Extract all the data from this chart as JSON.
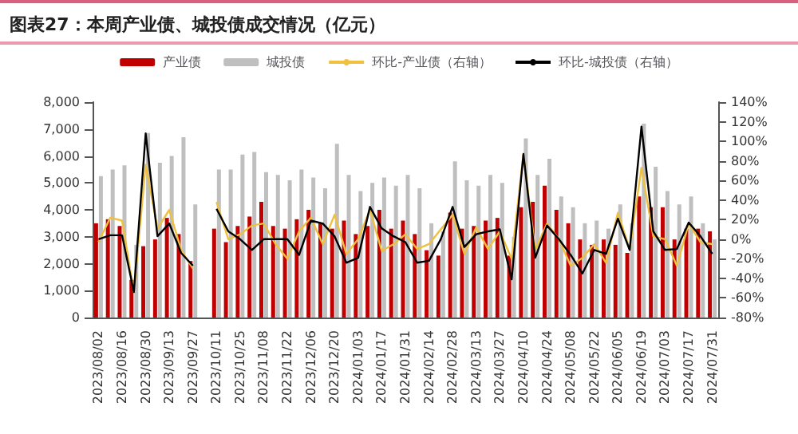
{
  "chart_data": {
    "type": "bar",
    "title": "图表27：本周产业债、城投债成交情况（亿元）",
    "categories": [
      "2023/08/02",
      null,
      "2023/08/16",
      null,
      "2023/08/30",
      null,
      "2023/09/13",
      null,
      "2023/09/27",
      null,
      "2023/10/11",
      null,
      "2023/10/25",
      null,
      "2023/11/08",
      null,
      "2023/11/22",
      null,
      "2023/12/06",
      null,
      "2023/12/20",
      null,
      "2024/01/03",
      null,
      "2024/01/17",
      null,
      "2024/01/31",
      null,
      "2024/02/14",
      null,
      "2024/02/28",
      null,
      "2024/03/13",
      null,
      "2024/03/27",
      null,
      "2024/04/10",
      null,
      "2024/04/24",
      null,
      "2024/05/08",
      null,
      "2024/05/22",
      null,
      "2024/06/05",
      null,
      "2024/06/19",
      null,
      "2024/07/03",
      null,
      "2024/07/17",
      null,
      "2024/07/31"
    ],
    "series": [
      {
        "name": "产业债",
        "color": "#c00000",
        "values": [
          3500,
          3650,
          3400,
          1400,
          2650,
          2900,
          3700,
          3100,
          2100,
          null,
          3300,
          2800,
          3400,
          3750,
          4300,
          3400,
          3300,
          3650,
          4000,
          3500,
          3300,
          3600,
          3100,
          3400,
          4000,
          3300,
          3600,
          3100,
          2500,
          2300,
          3900,
          3300,
          3400,
          3600,
          3700,
          2300,
          4100,
          4300,
          4900,
          4000,
          3500,
          2900,
          2700,
          2900,
          2700,
          2400,
          4500,
          4100,
          4100,
          2900,
          3300,
          3300,
          3200
        ]
      },
      {
        "name": "城投债",
        "color": "#bfbfbf",
        "values": [
          5250,
          5500,
          5650,
          2700,
          6850,
          5750,
          6000,
          6700,
          4200,
          null,
          5500,
          5500,
          6050,
          6150,
          5400,
          5300,
          5100,
          5500,
          5200,
          4800,
          6450,
          5300,
          4700,
          5000,
          5200,
          4900,
          5300,
          4800,
          3500,
          3200,
          5800,
          5100,
          4900,
          5300,
          5000,
          3000,
          6650,
          5300,
          5900,
          4500,
          4100,
          3500,
          3600,
          3300,
          4200,
          3500,
          7200,
          5600,
          4700,
          4200,
          4500,
          3500,
          2900
        ]
      },
      {
        "name": "环比-产业债（右轴）",
        "type": "line",
        "axis": "y2",
        "color": "#f0c040",
        "values": [
          -3,
          22,
          19,
          -54,
          76,
          11,
          30,
          -11,
          -30,
          null,
          38,
          0,
          5,
          14,
          16,
          -5,
          -20,
          8,
          22,
          -5,
          25,
          -15,
          0,
          30,
          -12,
          -5,
          5,
          -10,
          -5,
          10,
          25,
          -15,
          12,
          -10,
          8,
          -20,
          87,
          -11,
          16,
          0,
          -27,
          -19,
          -5,
          -24,
          27,
          -10,
          73,
          3,
          0,
          -27,
          16,
          -3,
          -5
        ]
      },
      {
        "name": "环比-城投债（右轴）",
        "type": "line",
        "axis": "y2",
        "color": "#000000",
        "values": [
          0,
          4,
          4,
          -54,
          108,
          3,
          16,
          -14,
          -27,
          null,
          31,
          8,
          0,
          -11,
          0,
          0,
          0,
          -16,
          19,
          16,
          3,
          -24,
          -19,
          33,
          11,
          3,
          -3,
          -24,
          -22,
          0,
          33,
          -8,
          5,
          8,
          10,
          -41,
          87,
          -19,
          14,
          0,
          -16,
          -35,
          -11,
          -15,
          21,
          -11,
          115,
          8,
          -11,
          -10,
          17,
          3,
          -15
        ]
      }
    ],
    "ylim": [
      0,
      8000
    ],
    "yticks": [
      0,
      {
        "value": 1000,
        "label": "1,000"
      },
      {
        "value": 2000,
        "label": "2,000"
      },
      {
        "value": 3000,
        "label": "3,000"
      },
      {
        "value": 4000,
        "label": "4,000"
      },
      {
        "value": 5000,
        "label": "5,000"
      },
      {
        "value": 6000,
        "label": "6,000"
      },
      {
        "value": 7000,
        "label": "7,000"
      },
      {
        "value": 8000,
        "label": "8,000"
      }
    ],
    "y2lim": [
      -80,
      140
    ],
    "y2ticks": [
      {
        "value": -80,
        "label": "-80%"
      },
      {
        "value": -60,
        "label": "-60%"
      },
      {
        "value": -40,
        "label": "-40%"
      },
      {
        "value": -20,
        "label": "-20%"
      },
      {
        "value": 0,
        "label": "0%"
      },
      {
        "value": 20,
        "label": "20%"
      },
      {
        "value": 40,
        "label": "40%"
      },
      {
        "value": 60,
        "label": "60%"
      },
      {
        "value": 80,
        "label": "80%"
      },
      {
        "value": 100,
        "label": "100%"
      },
      {
        "value": 120,
        "label": "120%"
      },
      {
        "value": 140,
        "label": "140%"
      }
    ],
    "legend": "top",
    "marker": "none"
  }
}
